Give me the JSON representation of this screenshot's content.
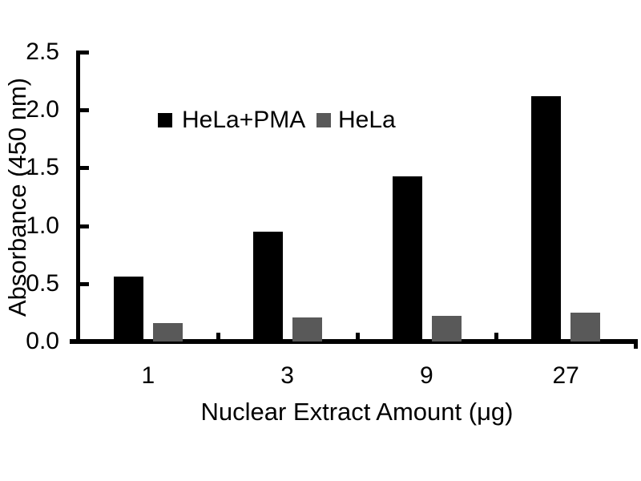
{
  "chart_data": {
    "type": "bar",
    "title": "",
    "xlabel": "Nuclear Extract Amount (μg)",
    "ylabel": "Absorbance (450 nm)",
    "categories": [
      "1",
      "3",
      "9",
      "27"
    ],
    "series": [
      {
        "name": "HeLa+PMA",
        "color": "#000000",
        "values": [
          0.56,
          0.95,
          1.43,
          2.12
        ]
      },
      {
        "name": "HeLa",
        "color": "#595959",
        "values": [
          0.16,
          0.21,
          0.22,
          0.25
        ]
      }
    ],
    "ylim": [
      0,
      2.5
    ],
    "yticks": [
      0,
      0.5,
      1.0,
      1.5,
      2.0,
      2.5
    ],
    "ytick_labels": [
      "0.0",
      "0.5",
      "1.0",
      "1.5",
      "2.0",
      "2.5"
    ],
    "grid": false,
    "legend_position": "inside-top",
    "background_color": "#ffffff",
    "axis_color": "#000000"
  }
}
